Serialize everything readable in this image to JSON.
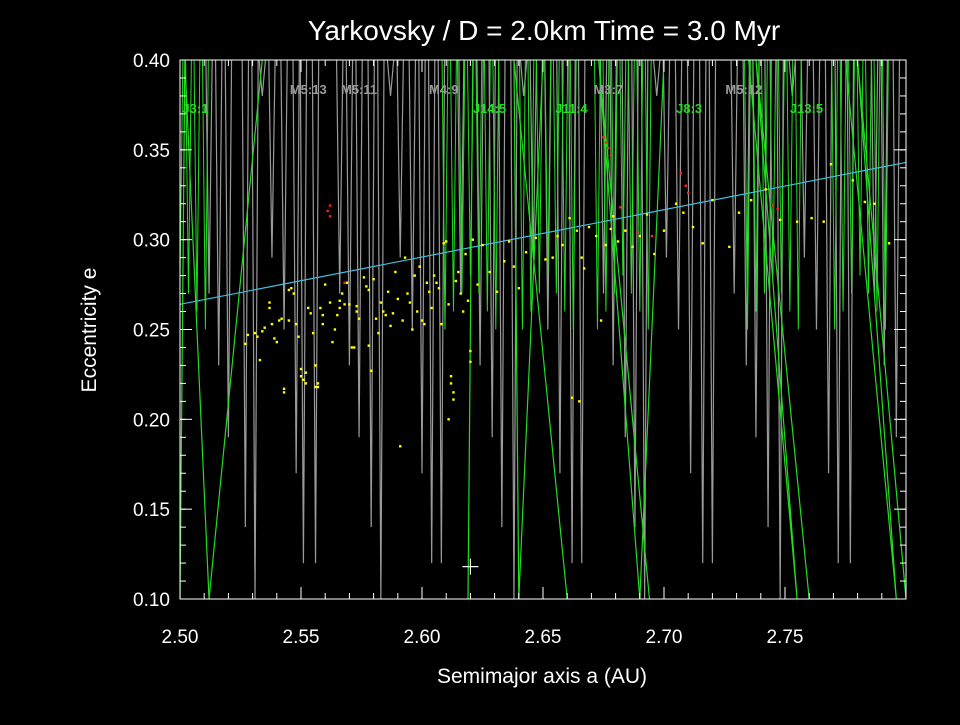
{
  "chart_data": {
    "type": "scatter",
    "title": "Yarkovsky / D = 2.0km   Time =    3.0 Myr",
    "xlabel": "Semimajor axis a (AU)",
    "ylabel": "Eccentricity e",
    "xlim": [
      2.5,
      2.8
    ],
    "ylim": [
      0.1,
      0.4
    ],
    "x_ticks": [
      "2.50",
      "2.55",
      "2.60",
      "2.65",
      "2.70",
      "2.75"
    ],
    "y_ticks": [
      "0.10",
      "0.15",
      "0.20",
      "0.25",
      "0.30",
      "0.35",
      "0.40"
    ],
    "grid": false,
    "colors": {
      "background": "#000000",
      "axes": "#ffffff",
      "jupiter_resonance": "#22dd22",
      "mars_resonance": "#9a9a9a",
      "boundary_line": "#40c0e0",
      "asteroid": "#ffff00",
      "asteroid_flagged": "#ff2020",
      "marker": "#ffffff"
    },
    "boundary_line": {
      "x": [
        2.5,
        2.8
      ],
      "y": [
        0.264,
        0.343
      ]
    },
    "resonance_labels": {
      "jupiter": [
        {
          "label": "J3:1",
          "a": 2.501
        },
        {
          "label": "J14:5",
          "a": 2.621
        },
        {
          "label": "J11:4",
          "a": 2.655
        },
        {
          "label": "J8:3",
          "a": 2.705
        },
        {
          "label": "J13:5",
          "a": 2.752
        }
      ],
      "mars": [
        {
          "label": "M5:13",
          "a": 2.553
        },
        {
          "label": "M5:11",
          "a": 2.574
        },
        {
          "label": "M4:9",
          "a": 2.609
        },
        {
          "label": "M3:7",
          "a": 2.677
        },
        {
          "label": "M5:12",
          "a": 2.733
        }
      ]
    },
    "jupiter_resonances": [
      {
        "a": 2.5,
        "zigzag": [
          2.534,
          2.512,
          2.502,
          2.5
        ]
      },
      {
        "a": 2.62,
        "zigzag": [
          2.621,
          2.619,
          2.621,
          2.619
        ]
      },
      {
        "a": 2.652,
        "zigzag": [
          2.65,
          2.64,
          2.638,
          2.66
        ]
      },
      {
        "a": 2.683,
        "zigzag": [
          2.7,
          2.69,
          2.673,
          2.694
        ]
      },
      {
        "a": 2.745,
        "zigzag": [
          2.735,
          2.755,
          2.738,
          2.76
        ]
      },
      {
        "a": 2.781,
        "zigzag": [
          2.775,
          2.796,
          2.78,
          2.8
        ]
      }
    ],
    "mars_resonance_a": [
      2.507,
      2.512,
      2.516,
      2.52,
      2.527,
      2.531,
      2.534,
      2.538,
      2.543,
      2.548,
      2.551,
      2.556,
      2.561,
      2.566,
      2.57,
      2.574,
      2.579,
      2.583,
      2.587,
      2.591,
      2.596,
      2.6,
      2.604,
      2.608,
      2.612,
      2.616,
      2.624,
      2.629,
      2.633,
      2.638,
      2.642,
      2.646,
      2.652,
      2.657,
      2.662,
      2.666,
      2.671,
      2.675,
      2.679,
      2.684,
      2.688,
      2.692,
      2.697,
      2.701,
      2.706,
      2.711,
      2.716,
      2.72,
      2.725,
      2.729,
      2.734,
      2.738,
      2.743,
      2.748,
      2.753,
      2.758,
      2.763,
      2.768,
      2.772,
      2.777,
      2.782,
      2.787,
      2.791,
      2.796
    ],
    "asteroids": [
      [
        2.527,
        0.242
      ],
      [
        2.528,
        0.247
      ],
      [
        2.531,
        0.248
      ],
      [
        2.532,
        0.246
      ],
      [
        2.533,
        0.233
      ],
      [
        2.534,
        0.249
      ],
      [
        2.535,
        0.251
      ],
      [
        2.537,
        0.262
      ],
      [
        2.537,
        0.265
      ],
      [
        2.538,
        0.253
      ],
      [
        2.539,
        0.245
      ],
      [
        2.54,
        0.243
      ],
      [
        2.541,
        0.255
      ],
      [
        2.542,
        0.256
      ],
      [
        2.543,
        0.217
      ],
      [
        2.543,
        0.215
      ],
      [
        2.545,
        0.255
      ],
      [
        2.545,
        0.272
      ],
      [
        2.546,
        0.273
      ],
      [
        2.547,
        0.27
      ],
      [
        2.548,
        0.253
      ],
      [
        2.549,
        0.246
      ],
      [
        2.55,
        0.228
      ],
      [
        2.55,
        0.224
      ],
      [
        2.551,
        0.222
      ],
      [
        2.552,
        0.22
      ],
      [
        2.552,
        0.226
      ],
      [
        2.553,
        0.262
      ],
      [
        2.554,
        0.259
      ],
      [
        2.555,
        0.248
      ],
      [
        2.556,
        0.23
      ],
      [
        2.556,
        0.218
      ],
      [
        2.557,
        0.218
      ],
      [
        2.557,
        0.22
      ],
      [
        2.558,
        0.262
      ],
      [
        2.559,
        0.258
      ],
      [
        2.559,
        0.253
      ],
      [
        2.56,
        0.275
      ],
      [
        2.562,
        0.265
      ],
      [
        2.563,
        0.243
      ],
      [
        2.564,
        0.25
      ],
      [
        2.565,
        0.258
      ],
      [
        2.566,
        0.262
      ],
      [
        2.566,
        0.266
      ],
      [
        2.567,
        0.27
      ],
      [
        2.568,
        0.264
      ],
      [
        2.569,
        0.276
      ],
      [
        2.57,
        0.264
      ],
      [
        2.571,
        0.24
      ],
      [
        2.572,
        0.24
      ],
      [
        2.573,
        0.263
      ],
      [
        2.573,
        0.26
      ],
      [
        2.574,
        0.256
      ],
      [
        2.576,
        0.279
      ],
      [
        2.577,
        0.274
      ],
      [
        2.578,
        0.272
      ],
      [
        2.578,
        0.241
      ],
      [
        2.579,
        0.227
      ],
      [
        2.58,
        0.278
      ],
      [
        2.581,
        0.256
      ],
      [
        2.582,
        0.248
      ],
      [
        2.583,
        0.265
      ],
      [
        2.584,
        0.26
      ],
      [
        2.585,
        0.258
      ],
      [
        2.586,
        0.271
      ],
      [
        2.587,
        0.252
      ],
      [
        2.588,
        0.259
      ],
      [
        2.589,
        0.282
      ],
      [
        2.59,
        0.267
      ],
      [
        2.591,
        0.185
      ],
      [
        2.592,
        0.255
      ],
      [
        2.593,
        0.29
      ],
      [
        2.594,
        0.27
      ],
      [
        2.595,
        0.265
      ],
      [
        2.596,
        0.25
      ],
      [
        2.597,
        0.28
      ],
      [
        2.598,
        0.26
      ],
      [
        2.599,
        0.285
      ],
      [
        2.6,
        0.255
      ],
      [
        2.601,
        0.253
      ],
      [
        2.602,
        0.276
      ],
      [
        2.603,
        0.271
      ],
      [
        2.604,
        0.262
      ],
      [
        2.605,
        0.28
      ],
      [
        2.606,
        0.276
      ],
      [
        2.607,
        0.273
      ],
      [
        2.608,
        0.253
      ],
      [
        2.609,
        0.298
      ],
      [
        2.61,
        0.299
      ],
      [
        2.611,
        0.264
      ],
      [
        2.611,
        0.2
      ],
      [
        2.612,
        0.224
      ],
      [
        2.612,
        0.22
      ],
      [
        2.613,
        0.215
      ],
      [
        2.613,
        0.211
      ],
      [
        2.614,
        0.277
      ],
      [
        2.615,
        0.282
      ],
      [
        2.616,
        0.27
      ],
      [
        2.617,
        0.26
      ],
      [
        2.618,
        0.292
      ],
      [
        2.619,
        0.266
      ],
      [
        2.62,
        0.232
      ],
      [
        2.62,
        0.238
      ],
      [
        2.621,
        0.3
      ],
      [
        2.623,
        0.275
      ],
      [
        2.625,
        0.297
      ],
      [
        2.628,
        0.282
      ],
      [
        2.631,
        0.271
      ],
      [
        2.634,
        0.288
      ],
      [
        2.636,
        0.299
      ],
      [
        2.638,
        0.285
      ],
      [
        2.64,
        0.273
      ],
      [
        2.643,
        0.293
      ],
      [
        2.647,
        0.301
      ],
      [
        2.651,
        0.289
      ],
      [
        2.654,
        0.29
      ],
      [
        2.656,
        0.302
      ],
      [
        2.658,
        0.297
      ],
      [
        2.661,
        0.312
      ],
      [
        2.664,
        0.305
      ],
      [
        2.666,
        0.29
      ],
      [
        2.667,
        0.284
      ],
      [
        2.669,
        0.307
      ],
      [
        2.672,
        0.302
      ],
      [
        2.674,
        0.255
      ],
      [
        2.676,
        0.297
      ],
      [
        2.678,
        0.306
      ],
      [
        2.679,
        0.313
      ],
      [
        2.681,
        0.299
      ],
      [
        2.684,
        0.305
      ],
      [
        2.687,
        0.296
      ],
      [
        2.69,
        0.302
      ],
      [
        2.693,
        0.314
      ],
      [
        2.696,
        0.292
      ],
      [
        2.7,
        0.305
      ],
      [
        2.705,
        0.32
      ],
      [
        2.708,
        0.315
      ],
      [
        2.712,
        0.307
      ],
      [
        2.716,
        0.298
      ],
      [
        2.72,
        0.322
      ],
      [
        2.727,
        0.296
      ],
      [
        2.731,
        0.315
      ],
      [
        2.736,
        0.322
      ],
      [
        2.742,
        0.328
      ],
      [
        2.748,
        0.311
      ],
      [
        2.755,
        0.31
      ],
      [
        2.761,
        0.312
      ],
      [
        2.766,
        0.31
      ],
      [
        2.769,
        0.342
      ],
      [
        2.778,
        0.333
      ],
      [
        2.783,
        0.321
      ],
      [
        2.787,
        0.32
      ],
      [
        2.793,
        0.298
      ],
      [
        2.665,
        0.21
      ],
      [
        2.662,
        0.212
      ]
    ],
    "asteroids_flagged": [
      [
        2.561,
        0.316
      ],
      [
        2.562,
        0.319
      ],
      [
        2.562,
        0.313
      ],
      [
        2.568,
        0.276
      ],
      [
        2.675,
        0.357
      ],
      [
        2.676,
        0.354
      ],
      [
        2.677,
        0.351
      ],
      [
        2.678,
        0.347
      ],
      [
        2.682,
        0.318
      ],
      [
        2.707,
        0.337
      ],
      [
        2.709,
        0.33
      ],
      [
        2.71,
        0.326
      ],
      [
        2.745,
        0.319
      ],
      [
        2.747,
        0.317
      ],
      [
        2.695,
        0.302
      ],
      [
        2.689,
        0.304
      ]
    ],
    "marker": {
      "a": 2.62,
      "e": 0.118
    }
  }
}
